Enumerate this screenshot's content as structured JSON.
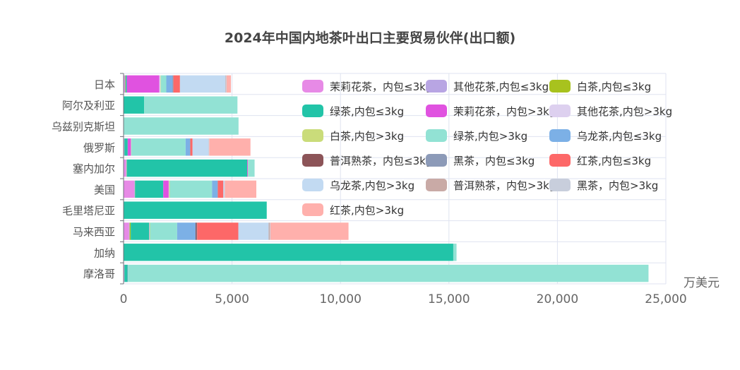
{
  "chart_data": {
    "type": "bar",
    "orientation": "horizontal",
    "stacked": true,
    "title": "2024年中国内地茶叶出口主要贸易伙伴(出口额)",
    "xlabel": "万美元",
    "ylabel": "",
    "xlim": [
      0,
      25000
    ],
    "x_ticks": [
      "0",
      "5,000",
      "10,000",
      "15,000",
      "20,000",
      "25,000"
    ],
    "x_tick_values": [
      0,
      5000,
      10000,
      15000,
      20000,
      25000
    ],
    "grid": true,
    "legend_position": "top-right",
    "categories": [
      "日本",
      "阿尔及利亚",
      "乌兹别克斯坦",
      "俄罗斯",
      "塞内加尔",
      "美国",
      "毛里塔尼亚",
      "马来西亚",
      "加纳",
      "摩洛哥"
    ],
    "series": [
      {
        "name": "茉莉花茶，内包≤3kg",
        "color": "#e78ae6",
        "values": [
          50,
          0,
          0,
          30,
          120,
          500,
          0,
          250,
          0,
          30
        ]
      },
      {
        "name": "其他花茶,内包≤3kg",
        "color": "#b8a5e3",
        "values": [
          30,
          0,
          0,
          10,
          20,
          20,
          0,
          30,
          0,
          10
        ]
      },
      {
        "name": "白茶,内包≤3kg",
        "color": "#a8c21e",
        "values": [
          20,
          0,
          0,
          0,
          10,
          10,
          0,
          50,
          0,
          0
        ]
      },
      {
        "name": "绿茶,内包≤3kg",
        "color": "#22c4a8",
        "values": [
          50,
          950,
          0,
          150,
          5550,
          1300,
          6600,
          850,
          15200,
          150
        ]
      },
      {
        "name": "茉莉花茶，内包>3kg",
        "color": "#e052e0",
        "values": [
          1500,
          0,
          0,
          150,
          30,
          250,
          0,
          10,
          0,
          10
        ]
      },
      {
        "name": "其他花茶,内包>3kg",
        "color": "#ddd0ef",
        "values": [
          50,
          0,
          0,
          10,
          0,
          20,
          0,
          10,
          0,
          0
        ]
      },
      {
        "name": "白茶,内包>3kg",
        "color": "#cadc7a",
        "values": [
          20,
          0,
          0,
          10,
          10,
          30,
          0,
          20,
          0,
          0
        ]
      },
      {
        "name": "绿茶,内包>3kg",
        "color": "#92e2d4",
        "values": [
          250,
          4300,
          5300,
          2500,
          300,
          1950,
          0,
          1250,
          150,
          24000
        ]
      },
      {
        "name": "乌龙茶,内包≤3kg",
        "color": "#7cb0e6",
        "values": [
          300,
          0,
          0,
          200,
          0,
          250,
          0,
          850,
          0,
          0
        ]
      },
      {
        "name": "普洱熟茶，内包≤3kg",
        "color": "#8c5458",
        "values": [
          20,
          0,
          0,
          10,
          0,
          10,
          0,
          50,
          0,
          0
        ]
      },
      {
        "name": "黑茶，内包≤3kg",
        "color": "#8c9ab8",
        "values": [
          10,
          0,
          0,
          10,
          0,
          10,
          0,
          20,
          0,
          0
        ]
      },
      {
        "name": "红茶,内包≤3kg",
        "color": "#fd6868",
        "values": [
          300,
          0,
          0,
          100,
          0,
          250,
          0,
          1900,
          0,
          0
        ]
      },
      {
        "name": "乌龙茶,内包>3kg",
        "color": "#c2daf2",
        "values": [
          2100,
          0,
          0,
          750,
          0,
          50,
          0,
          1400,
          0,
          0
        ]
      },
      {
        "name": "普洱熟茶，内包>3kg",
        "color": "#c9aaa6",
        "values": [
          30,
          0,
          0,
          10,
          0,
          10,
          0,
          50,
          0,
          0
        ]
      },
      {
        "name": "黑茶，内包>3kg",
        "color": "#c8cedc",
        "values": [
          20,
          0,
          0,
          10,
          0,
          10,
          0,
          30,
          0,
          0
        ]
      },
      {
        "name": "红茶,内包>3kg",
        "color": "#ffb0ac",
        "values": [
          200,
          0,
          0,
          1900,
          0,
          1450,
          0,
          3600,
          0,
          0
        ]
      }
    ]
  }
}
